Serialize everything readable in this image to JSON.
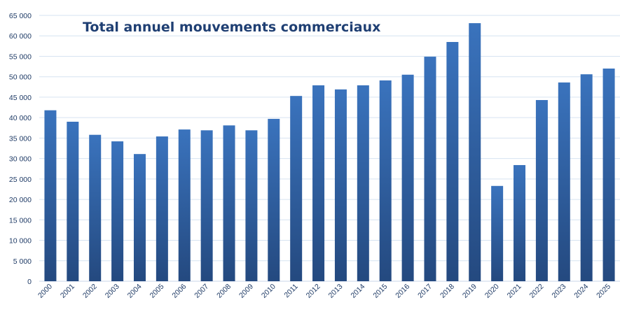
{
  "chart_data": {
    "type": "bar",
    "title": "Total annuel mouvements commerciaux",
    "xlabel": "",
    "ylabel": "",
    "ylim": [
      0,
      65000
    ],
    "yticks": [
      0,
      5000,
      10000,
      15000,
      20000,
      25000,
      30000,
      35000,
      40000,
      45000,
      50000,
      55000,
      60000,
      65000
    ],
    "ytick_labels": [
      "0",
      "5 000",
      "10 000",
      "15 000",
      "20 000",
      "25 000",
      "30 000",
      "35 000",
      "40 000",
      "45 000",
      "50 000",
      "55 000",
      "60 000",
      "65 000"
    ],
    "grid": true,
    "categories": [
      "2000",
      "2001",
      "2002",
      "2003",
      "2004",
      "2005",
      "2006",
      "2007",
      "2008",
      "2009",
      "2010",
      "2011",
      "2012",
      "2013",
      "2014",
      "2015",
      "2016",
      "2017",
      "2018",
      "2019",
      "2020",
      "2021",
      "2022",
      "2023",
      "2024",
      "2025"
    ],
    "values": [
      41800,
      39000,
      35800,
      34200,
      31100,
      35400,
      37100,
      36900,
      38100,
      36900,
      39700,
      45300,
      47900,
      46900,
      47900,
      49100,
      50500,
      54900,
      58500,
      63100,
      23300,
      28400,
      44300,
      48600,
      50600,
      52000
    ],
    "colors": {
      "bar_top": "#3a73bd",
      "bar_bottom": "#24497f",
      "grid": "#d6e3f1",
      "axis": "#c8d6e8"
    }
  }
}
